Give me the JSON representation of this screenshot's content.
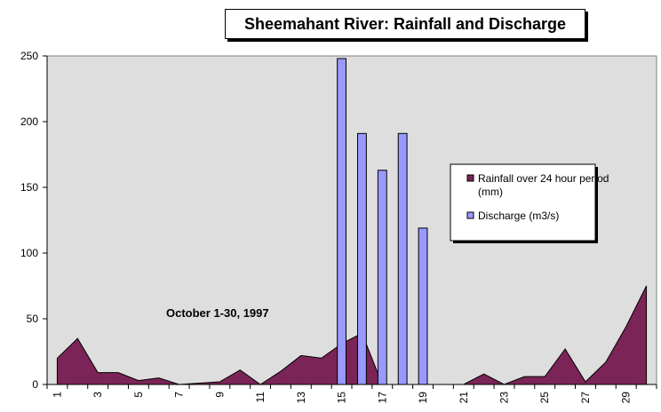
{
  "chart_data": {
    "type": "bar",
    "title": "Sheemahant River:  Rainfall and Discharge",
    "annotation": "October 1-30, 1997",
    "xlabel": "",
    "ylabel": "",
    "ylim": [
      0,
      250
    ],
    "yticks": [
      0,
      50,
      100,
      150,
      200,
      250
    ],
    "x": [
      1,
      2,
      3,
      4,
      5,
      6,
      7,
      8,
      9,
      10,
      11,
      12,
      13,
      14,
      15,
      16,
      17,
      18,
      19,
      20,
      21,
      22,
      23,
      24,
      25,
      26,
      27,
      28,
      29,
      30
    ],
    "xtick_labels": [
      "1",
      "3",
      "5",
      "7",
      "9",
      "11",
      "13",
      "15",
      "17",
      "19",
      "21",
      "23",
      "25",
      "27",
      "29"
    ],
    "grid": false,
    "legend_position": "right",
    "series": [
      {
        "name": "Rainfall over 24 hour period (mm)",
        "kind": "area",
        "color": "#7b2457",
        "values": [
          20,
          35,
          9,
          9,
          3,
          5,
          0,
          1,
          2,
          11,
          0,
          10,
          22,
          20,
          31,
          39,
          0,
          0,
          0,
          0,
          0,
          8,
          0,
          6,
          6,
          27,
          2,
          17,
          44,
          75
        ]
      },
      {
        "name": "Discharge (m3/s)",
        "kind": "bar",
        "color": "#9999ff",
        "values": [
          null,
          null,
          null,
          null,
          null,
          null,
          null,
          null,
          null,
          null,
          null,
          null,
          null,
          null,
          248,
          191,
          163,
          191,
          119,
          null,
          null,
          null,
          null,
          null,
          null,
          null,
          null,
          null,
          null,
          null
        ]
      }
    ],
    "plot_background": "#dedede"
  }
}
